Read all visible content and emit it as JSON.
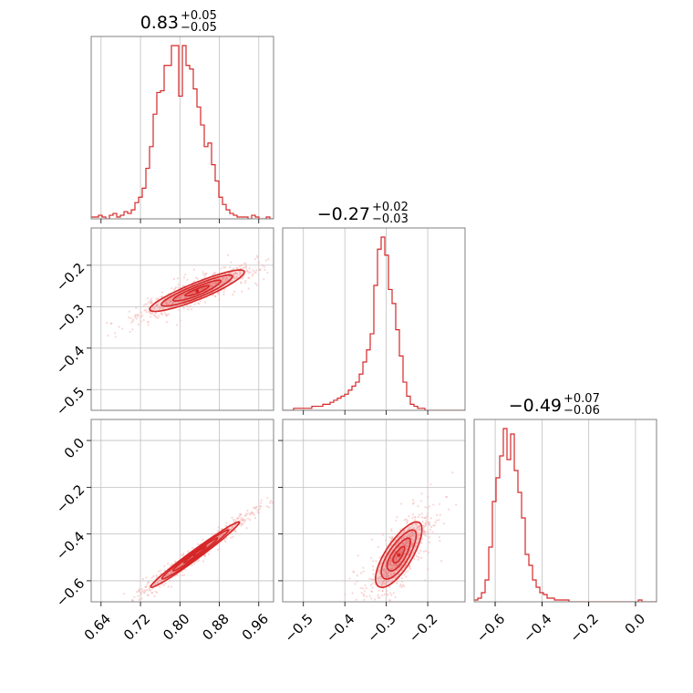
{
  "colors": {
    "accent": "#d62728",
    "accent_light": "#f5b5b5",
    "grid": "#bfbfbf",
    "frame": "#808080"
  },
  "chart_data": {
    "type": "corner",
    "parameters": [
      {
        "index": 0,
        "title_value": "0.83",
        "title_plus": "+0.05",
        "title_minus": "−0.05",
        "range": [
          0.62,
          0.99
        ],
        "ticks": [
          0.64,
          0.72,
          0.8,
          0.88,
          0.96
        ],
        "tick_labels": [
          "0.64",
          "0.72",
          "0.80",
          "0.88",
          "0.96"
        ],
        "histogram": {
          "bins_start": 0.62,
          "bin_width": 0.0074,
          "counts": [
            1,
            1,
            2,
            1,
            0,
            2,
            3,
            1,
            2,
            4,
            3,
            5,
            9,
            12,
            17,
            28,
            40,
            58,
            70,
            71,
            85,
            85,
            96,
            96,
            68,
            96,
            85,
            83,
            72,
            62,
            52,
            40,
            42,
            30,
            21,
            12,
            8,
            5,
            3,
            2,
            1,
            1,
            1,
            0,
            2,
            1,
            0,
            0,
            1,
            0
          ]
        }
      },
      {
        "index": 1,
        "title_value": "−0.27",
        "title_plus": "+0.02",
        "title_minus": "−0.03",
        "range": [
          -0.55,
          -0.11
        ],
        "ticks": [
          -0.5,
          -0.4,
          -0.3,
          -0.2
        ],
        "tick_labels": [
          "−0.5",
          "−0.4",
          "−0.3",
          "−0.2"
        ],
        "histogram": {
          "bins_start": -0.55,
          "bin_width": 0.0088,
          "counts": [
            0,
            0,
            0,
            1,
            1,
            1,
            1,
            1,
            2,
            2,
            2,
            3,
            3,
            4,
            5,
            6,
            7,
            8,
            10,
            12,
            14,
            18,
            24,
            30,
            38,
            62,
            80,
            86,
            77,
            60,
            53,
            40,
            27,
            14,
            7,
            3,
            2,
            1,
            1,
            0,
            0,
            0,
            0,
            0,
            0,
            0,
            0,
            0,
            0,
            0
          ]
        }
      },
      {
        "index": 2,
        "title_value": "−0.49",
        "title_plus": "+0.07",
        "title_minus": "−0.06",
        "range": [
          -0.69,
          0.09
        ],
        "ticks": [
          -0.6,
          -0.4,
          -0.2,
          0.0
        ],
        "tick_labels": [
          "−0.6",
          "−0.4",
          "−0.2",
          "0.0"
        ],
        "histogram": {
          "bins_start": -0.69,
          "bin_width": 0.0156,
          "counts": [
            1,
            2,
            5,
            12,
            30,
            55,
            68,
            80,
            95,
            78,
            92,
            72,
            60,
            46,
            26,
            20,
            12,
            8,
            5,
            4,
            2,
            2,
            1,
            1,
            1,
            1,
            0,
            0,
            0,
            0,
            0,
            0,
            0,
            0,
            0,
            0,
            0,
            0,
            0,
            0,
            0,
            0,
            0,
            0,
            0,
            1,
            0,
            0,
            0,
            0
          ]
        }
      }
    ],
    "correlations": [
      {
        "x": 0,
        "y": 1,
        "center": [
          0.835,
          -0.262
        ],
        "sd": [
          0.048,
          0.025
        ],
        "rho": 0.9,
        "scatter_sd_scale": 2.2
      },
      {
        "x": 0,
        "y": 2,
        "center": [
          0.83,
          -0.49
        ],
        "sd": [
          0.045,
          0.07
        ],
        "rho": 0.985,
        "scatter_sd_scale": 2.0
      },
      {
        "x": 1,
        "y": 2,
        "center": [
          -0.27,
          -0.49
        ],
        "sd": [
          0.028,
          0.07
        ],
        "rho": 0.75,
        "scatter_sd_scale": 2.2
      }
    ],
    "contour_levels_sigma": [
      0.5,
      1.0,
      1.5,
      2.0
    ],
    "grid": true
  }
}
